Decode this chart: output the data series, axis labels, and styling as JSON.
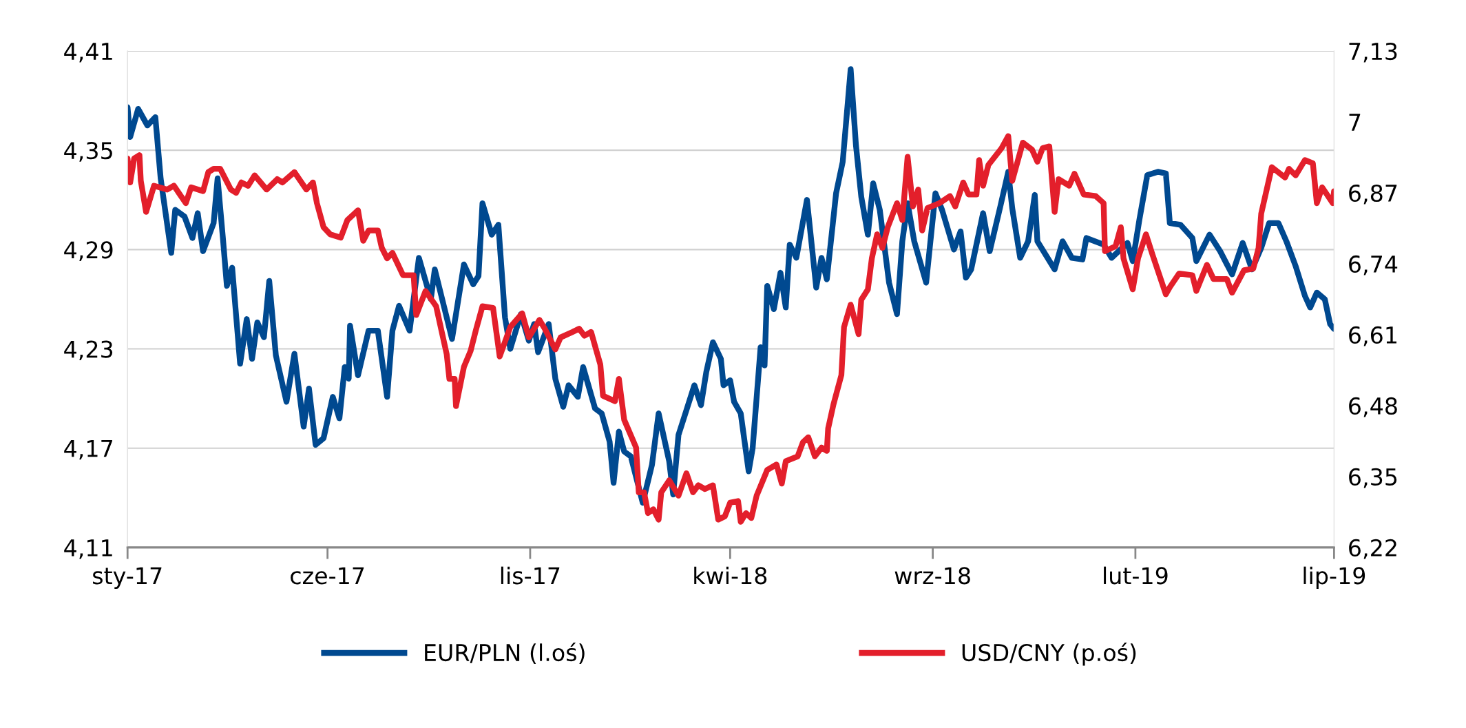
{
  "chart_data": {
    "type": "line",
    "xlim": [
      "2017-01-01",
      "2019-07-01"
    ],
    "xticks": [
      {
        "value": "2017-01-01",
        "label": "sty-17"
      },
      {
        "value": "2017-06-01",
        "label": "cze-17"
      },
      {
        "value": "2017-11-01",
        "label": "lis-17"
      },
      {
        "value": "2018-04-01",
        "label": "kwi-18"
      },
      {
        "value": "2018-09-01",
        "label": "wrz-18"
      },
      {
        "value": "2019-02-01",
        "label": "lut-19"
      },
      {
        "value": "2019-07-01",
        "label": "lip-19"
      }
    ],
    "ylim": [
      4.11,
      4.41
    ],
    "yticks": [
      {
        "value": 4.11,
        "label": "4,11"
      },
      {
        "value": 4.17,
        "label": "4,17"
      },
      {
        "value": 4.23,
        "label": "4,23"
      },
      {
        "value": 4.29,
        "label": "4,29"
      },
      {
        "value": 4.35,
        "label": "4,35"
      },
      {
        "value": 4.41,
        "label": "4,41"
      }
    ],
    "y2lim": [
      6.22,
      7.13
    ],
    "y2ticks": [
      {
        "value": 6.22,
        "label": "6,22"
      },
      {
        "value": 6.35,
        "label": "6,35"
      },
      {
        "value": 6.48,
        "label": "6,48"
      },
      {
        "value": 6.61,
        "label": "6,61"
      },
      {
        "value": 6.74,
        "label": "6,74"
      },
      {
        "value": 6.87,
        "label": "6,87"
      },
      7,
      {
        "value": 7.13,
        "label": "7,13"
      }
    ],
    "grid": "y",
    "legend": "bottom",
    "marker": "none",
    "line_style": "solid",
    "series": [
      {
        "name": "EUR/PLN (l.oś)",
        "color": "#004990",
        "axis": "y",
        "x": [
          "2017-01-01",
          "2017-01-03",
          "2017-01-09",
          "2017-01-16",
          "2017-01-22",
          "2017-01-26",
          "2017-02-03",
          "2017-02-06",
          "2017-02-13",
          "2017-02-19",
          "2017-02-23",
          "2017-02-27",
          "2017-03-07",
          "2017-03-10",
          "2017-03-14",
          "2017-03-17",
          "2017-03-21",
          "2017-03-27",
          "2017-04-01",
          "2017-04-05",
          "2017-04-09",
          "2017-04-14",
          "2017-04-18",
          "2017-04-23",
          "2017-05-01",
          "2017-05-07",
          "2017-05-14",
          "2017-05-18",
          "2017-05-23",
          "2017-05-29",
          "2017-06-05",
          "2017-06-10",
          "2017-06-14",
          "2017-06-17",
          "2017-06-18",
          "2017-06-24",
          "2017-07-02",
          "2017-07-09",
          "2017-07-16",
          "2017-07-20",
          "2017-07-25",
          "2017-08-02",
          "2017-08-09",
          "2017-08-18",
          "2017-08-21",
          "2017-09-03",
          "2017-09-12",
          "2017-09-19",
          "2017-09-23",
          "2017-09-26",
          "2017-10-03",
          "2017-10-08",
          "2017-10-13",
          "2017-10-17",
          "2017-10-25",
          "2017-10-31",
          "2017-11-04",
          "2017-11-07",
          "2017-11-15",
          "2017-11-20",
          "2017-11-26",
          "2017-11-30",
          "2017-12-07",
          "2017-12-11",
          "2017-12-20",
          "2017-12-25",
          "2017-12-31",
          "2018-01-03",
          "2018-01-07",
          "2018-01-11",
          "2018-01-16",
          "2018-01-25",
          "2018-02-01",
          "2018-02-06",
          "2018-02-14",
          "2018-02-17",
          "2018-02-21",
          "2018-02-27",
          "2018-03-05",
          "2018-03-10",
          "2018-03-14",
          "2018-03-19",
          "2018-03-25",
          "2018-03-27",
          "2018-04-01",
          "2018-04-04",
          "2018-04-09",
          "2018-04-15",
          "2018-04-18",
          "2018-04-24",
          "2018-04-27",
          "2018-04-29",
          "2018-05-04",
          "2018-05-09",
          "2018-05-13",
          "2018-05-16",
          "2018-05-21",
          "2018-05-29",
          "2018-06-05",
          "2018-06-09",
          "2018-06-13",
          "2018-06-20",
          "2018-06-25",
          "2018-07-01",
          "2018-07-05",
          "2018-07-09",
          "2018-07-14",
          "2018-07-18",
          "2018-07-23",
          "2018-07-30",
          "2018-08-05",
          "2018-08-09",
          "2018-08-13",
          "2018-08-18",
          "2018-08-27",
          "2018-09-03",
          "2018-09-08",
          "2018-09-17",
          "2018-09-22",
          "2018-09-26",
          "2018-09-30",
          "2018-10-09",
          "2018-10-14",
          "2018-10-22",
          "2018-10-28",
          "2018-10-31",
          "2018-11-06",
          "2018-11-12",
          "2018-11-17",
          "2018-11-19",
          "2018-12-02",
          "2018-12-08",
          "2018-12-15",
          "2018-12-23",
          "2018-12-26",
          "2019-01-08",
          "2019-01-14",
          "2019-01-26",
          "2019-01-30",
          "2019-02-04",
          "2019-02-10",
          "2019-02-18",
          "2019-02-24",
          "2019-02-27",
          "2019-03-07",
          "2019-03-16",
          "2019-03-19",
          "2019-03-29",
          "2019-04-06",
          "2019-04-15",
          "2019-04-23",
          "2019-04-30",
          "2019-05-07",
          "2019-05-13",
          "2019-05-20",
          "2019-05-26",
          "2019-06-02",
          "2019-06-09",
          "2019-06-13",
          "2019-06-18",
          "2019-06-24",
          "2019-06-28",
          "2019-07-01"
        ],
        "values": [
          4.376,
          4.358,
          4.375,
          4.365,
          4.37,
          4.333,
          4.288,
          4.314,
          4.31,
          4.297,
          4.312,
          4.289,
          4.306,
          4.333,
          4.297,
          4.268,
          4.279,
          4.221,
          4.248,
          4.224,
          4.246,
          4.237,
          4.271,
          4.226,
          4.198,
          4.227,
          4.183,
          4.206,
          4.172,
          4.176,
          4.201,
          4.188,
          4.219,
          4.212,
          4.244,
          4.214,
          4.241,
          4.241,
          4.201,
          4.241,
          4.256,
          4.241,
          4.285,
          4.26,
          4.278,
          4.236,
          4.281,
          4.269,
          4.274,
          4.318,
          4.299,
          4.305,
          4.249,
          4.23,
          4.251,
          4.235,
          4.245,
          4.228,
          4.245,
          4.212,
          4.195,
          4.208,
          4.201,
          4.219,
          4.194,
          4.191,
          4.174,
          4.149,
          4.18,
          4.168,
          4.165,
          4.137,
          4.16,
          4.191,
          4.162,
          4.142,
          4.178,
          4.193,
          4.208,
          4.196,
          4.216,
          4.234,
          4.224,
          4.208,
          4.211,
          4.198,
          4.191,
          4.156,
          4.17,
          4.231,
          4.22,
          4.268,
          4.254,
          4.276,
          4.255,
          4.293,
          4.285,
          4.32,
          4.267,
          4.285,
          4.272,
          4.324,
          4.343,
          4.399,
          4.353,
          4.322,
          4.299,
          4.33,
          4.314,
          4.27,
          4.251,
          4.295,
          4.318,
          4.295,
          4.27,
          4.324,
          4.314,
          4.29,
          4.301,
          4.273,
          4.278,
          4.312,
          4.289,
          4.316,
          4.337,
          4.315,
          4.285,
          4.295,
          4.323,
          4.295,
          4.278,
          4.295,
          4.285,
          4.284,
          4.297,
          4.293,
          4.285,
          4.294,
          4.283,
          4.308,
          4.335,
          4.337,
          4.336,
          4.306,
          4.305,
          4.297,
          4.283,
          4.299,
          4.289,
          4.275,
          4.294,
          4.278,
          4.291,
          4.306,
          4.306,
          4.295,
          4.28,
          4.262,
          4.255,
          4.264,
          4.26,
          4.245,
          4.242
        ]
      },
      {
        "name": "USD/CNY (p.oś)",
        "color": "#e31f2b",
        "axis": "y2",
        "x": [
          "2017-01-01",
          "2017-01-03",
          "2017-01-06",
          "2017-01-10",
          "2017-01-11",
          "2017-01-15",
          "2017-01-21",
          "2017-01-31",
          "2017-02-05",
          "2017-02-14",
          "2017-02-18",
          "2017-02-27",
          "2017-03-03",
          "2017-03-07",
          "2017-03-12",
          "2017-03-20",
          "2017-03-24",
          "2017-03-28",
          "2017-04-02",
          "2017-04-07",
          "2017-04-16",
          "2017-04-24",
          "2017-04-28",
          "2017-05-07",
          "2017-05-16",
          "2017-05-21",
          "2017-05-24",
          "2017-05-29",
          "2017-06-03",
          "2017-06-11",
          "2017-06-16",
          "2017-06-24",
          "2017-06-28",
          "2017-07-02",
          "2017-07-09",
          "2017-07-12",
          "2017-07-16",
          "2017-07-20",
          "2017-07-28",
          "2017-08-05",
          "2017-08-07",
          "2017-08-14",
          "2017-08-22",
          "2017-08-26",
          "2017-08-30",
          "2017-09-01",
          "2017-09-05",
          "2017-09-06",
          "2017-09-12",
          "2017-09-17",
          "2017-09-21",
          "2017-09-26",
          "2017-10-04",
          "2017-10-09",
          "2017-10-17",
          "2017-10-26",
          "2017-10-31",
          "2017-11-08",
          "2017-11-12",
          "2017-11-20",
          "2017-11-24",
          "2017-12-03",
          "2017-12-08",
          "2017-12-12",
          "2017-12-17",
          "2017-12-24",
          "2017-12-26",
          "2018-01-04",
          "2018-01-07",
          "2018-01-11",
          "2018-01-20",
          "2018-01-22",
          "2018-01-26",
          "2018-01-29",
          "2018-02-02",
          "2018-02-06",
          "2018-02-08",
          "2018-02-14",
          "2018-02-21",
          "2018-02-27",
          "2018-03-04",
          "2018-03-08",
          "2018-03-13",
          "2018-03-19",
          "2018-03-23",
          "2018-03-28",
          "2018-04-01",
          "2018-04-07",
          "2018-04-09",
          "2018-04-13",
          "2018-04-17",
          "2018-04-21",
          "2018-04-29",
          "2018-05-06",
          "2018-05-10",
          "2018-05-13",
          "2018-05-22",
          "2018-05-26",
          "2018-05-30",
          "2018-06-04",
          "2018-06-09",
          "2018-06-13",
          "2018-06-14",
          "2018-06-18",
          "2018-06-24",
          "2018-06-26",
          "2018-07-01",
          "2018-07-07",
          "2018-07-09",
          "2018-07-14",
          "2018-07-17",
          "2018-07-21",
          "2018-07-25",
          "2018-07-29",
          "2018-08-05",
          "2018-08-09",
          "2018-08-13",
          "2018-08-17",
          "2018-08-21",
          "2018-08-24",
          "2018-08-28",
          "2018-09-06",
          "2018-09-14",
          "2018-09-18",
          "2018-09-24",
          "2018-09-28",
          "2018-10-04",
          "2018-10-06",
          "2018-10-09",
          "2018-10-13",
          "2018-10-23",
          "2018-10-28",
          "2018-10-31",
          "2018-11-08",
          "2018-11-15",
          "2018-11-19",
          "2018-11-23",
          "2018-11-28",
          "2018-12-02",
          "2018-12-05",
          "2018-12-13",
          "2018-12-17",
          "2018-12-24",
          "2019-01-02",
          "2019-01-08",
          "2019-01-09",
          "2019-01-17",
          "2019-01-21",
          "2019-01-23",
          "2019-01-30",
          "2019-02-03",
          "2019-02-09",
          "2019-02-14",
          "2019-02-24",
          "2019-02-27",
          "2019-03-06",
          "2019-03-16",
          "2019-03-19",
          "2019-03-27",
          "2019-04-01",
          "2019-04-11",
          "2019-04-15",
          "2019-04-24",
          "2019-05-01",
          "2019-05-05",
          "2019-05-07",
          "2019-05-15",
          "2019-05-25",
          "2019-05-28",
          "2019-06-02",
          "2019-06-09",
          "2019-06-15",
          "2019-06-18",
          "2019-06-22",
          "2019-06-30",
          "2019-07-01"
        ],
        "values": [
          6.933,
          6.889,
          6.933,
          6.939,
          6.892,
          6.835,
          6.883,
          6.876,
          6.883,
          6.851,
          6.88,
          6.873,
          6.908,
          6.914,
          6.914,
          6.876,
          6.87,
          6.889,
          6.883,
          6.902,
          6.876,
          6.895,
          6.889,
          6.908,
          6.876,
          6.889,
          6.851,
          6.807,
          6.794,
          6.788,
          6.82,
          6.838,
          6.782,
          6.801,
          6.801,
          6.769,
          6.75,
          6.76,
          6.719,
          6.719,
          6.646,
          6.69,
          6.662,
          6.618,
          6.574,
          6.529,
          6.529,
          6.479,
          6.551,
          6.58,
          6.618,
          6.662,
          6.659,
          6.57,
          6.624,
          6.649,
          6.605,
          6.637,
          6.621,
          6.583,
          6.605,
          6.615,
          6.621,
          6.608,
          6.615,
          6.555,
          6.498,
          6.488,
          6.529,
          6.454,
          6.403,
          6.321,
          6.321,
          6.283,
          6.29,
          6.271,
          6.321,
          6.343,
          6.315,
          6.356,
          6.321,
          6.334,
          6.327,
          6.334,
          6.271,
          6.277,
          6.302,
          6.305,
          6.267,
          6.283,
          6.274,
          6.315,
          6.362,
          6.372,
          6.337,
          6.378,
          6.387,
          6.413,
          6.422,
          6.387,
          6.403,
          6.397,
          6.438,
          6.482,
          6.536,
          6.624,
          6.665,
          6.611,
          6.674,
          6.693,
          6.75,
          6.794,
          6.769,
          6.807,
          6.851,
          6.82,
          6.936,
          6.845,
          6.876,
          6.801,
          6.842,
          6.851,
          6.864,
          6.845,
          6.889,
          6.867,
          6.867,
          6.93,
          6.883,
          6.921,
          6.952,
          6.974,
          6.892,
          6.962,
          6.949,
          6.927,
          6.952,
          6.955,
          6.835,
          6.895,
          6.883,
          6.905,
          6.867,
          6.864,
          6.851,
          6.763,
          6.772,
          6.807,
          6.75,
          6.693,
          6.75,
          6.794,
          6.756,
          6.684,
          6.697,
          6.722,
          6.719,
          6.69,
          6.738,
          6.712,
          6.712,
          6.687,
          6.728,
          6.731,
          6.769,
          6.832,
          6.917,
          6.898,
          6.914,
          6.902,
          6.93,
          6.924,
          6.851,
          6.88,
          6.851,
          6.873
        ]
      }
    ]
  }
}
